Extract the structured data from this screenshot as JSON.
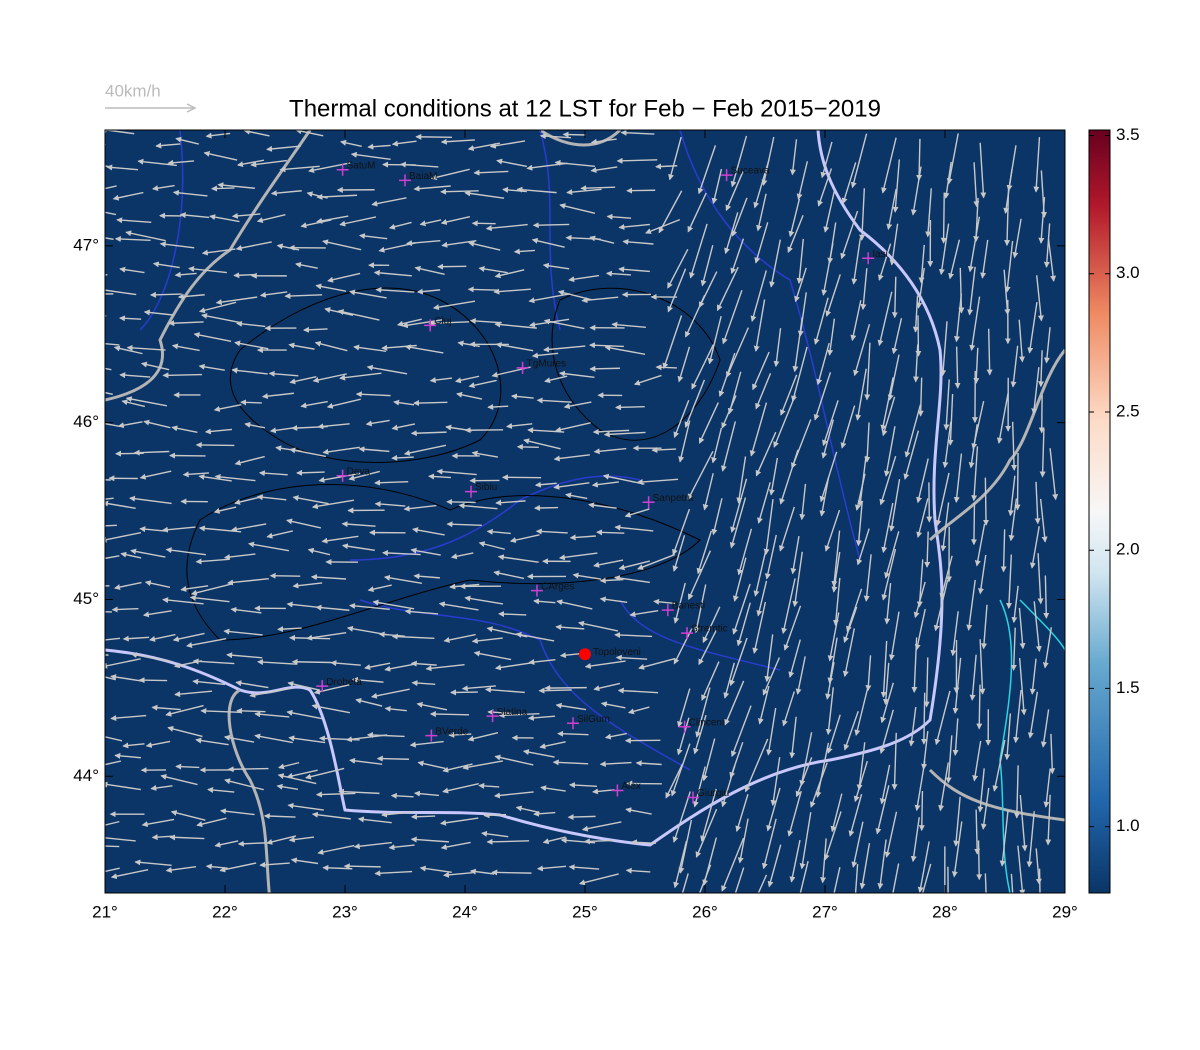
{
  "chart_data": {
    "type": "map",
    "title": "Thermal conditions at 12 LST for Feb − Feb  2015−2019",
    "wind_legend": "40km/h",
    "xlim": [
      21,
      29
    ],
    "ylim": [
      43.34,
      47.655
    ],
    "xticks": [
      {
        "value": 21,
        "label": "21°"
      },
      {
        "value": 22,
        "label": "22°"
      },
      {
        "value": 23,
        "label": "23°"
      },
      {
        "value": 24,
        "label": "24°"
      },
      {
        "value": 25,
        "label": "25°"
      },
      {
        "value": 26,
        "label": "26°"
      },
      {
        "value": 27,
        "label": "27°"
      },
      {
        "value": 28,
        "label": "28°"
      },
      {
        "value": 29,
        "label": "29°"
      }
    ],
    "yticks": [
      {
        "value": 44,
        "label": "44°"
      },
      {
        "value": 45,
        "label": "45°"
      },
      {
        "value": 46,
        "label": "46°"
      },
      {
        "value": 47,
        "label": "47°"
      }
    ],
    "clim": [
      0.76,
      3.52
    ],
    "cticks": [
      {
        "value": 1.0,
        "label": "1.0"
      },
      {
        "value": 1.5,
        "label": "1.5"
      },
      {
        "value": 2.0,
        "label": "2.0"
      },
      {
        "value": 2.5,
        "label": "2.5"
      },
      {
        "value": 3.0,
        "label": "3.0"
      },
      3.5
    ],
    "background_color": "#0b3567",
    "station_color": "#d040d0",
    "stations": [
      {
        "name": "SatuM",
        "lon": 22.98,
        "lat": 47.43
      },
      {
        "name": "BaiaM",
        "lon": 23.5,
        "lat": 47.37
      },
      {
        "name": "Suceava",
        "lon": 26.18,
        "lat": 47.4
      },
      {
        "name": "Iasi",
        "lon": 27.36,
        "lat": 46.93
      },
      {
        "name": "Cluj",
        "lon": 23.71,
        "lat": 46.55
      },
      {
        "name": "TgMures",
        "lon": 24.48,
        "lat": 46.31
      },
      {
        "name": "Deva",
        "lon": 22.98,
        "lat": 45.7
      },
      {
        "name": "Sibiu",
        "lon": 24.05,
        "lat": 45.61
      },
      {
        "name": "Sanpetru",
        "lon": 25.53,
        "lat": 45.55
      },
      {
        "name": "CArges",
        "lon": 24.6,
        "lat": 45.05
      },
      {
        "name": "Banesti",
        "lon": 25.69,
        "lat": 44.94
      },
      {
        "name": "Stremtic",
        "lon": 25.85,
        "lat": 44.81
      },
      {
        "name": "Drobeta",
        "lon": 22.81,
        "lat": 44.51
      },
      {
        "name": "Slatina",
        "lon": 24.23,
        "lat": 44.34
      },
      {
        "name": "SilGum",
        "lon": 24.9,
        "lat": 44.3
      },
      {
        "name": "Clinceni",
        "lon": 25.83,
        "lat": 44.28
      },
      {
        "name": "BVerde",
        "lon": 23.72,
        "lat": 44.23
      },
      {
        "name": "Alex",
        "lon": 25.27,
        "lat": 43.92
      },
      {
        "name": "Giurgiu",
        "lon": 25.9,
        "lat": 43.88
      }
    ],
    "highlight": {
      "name": "Topoloveni",
      "lon": 25.0,
      "lat": 44.69,
      "color": "#ff0000"
    }
  }
}
